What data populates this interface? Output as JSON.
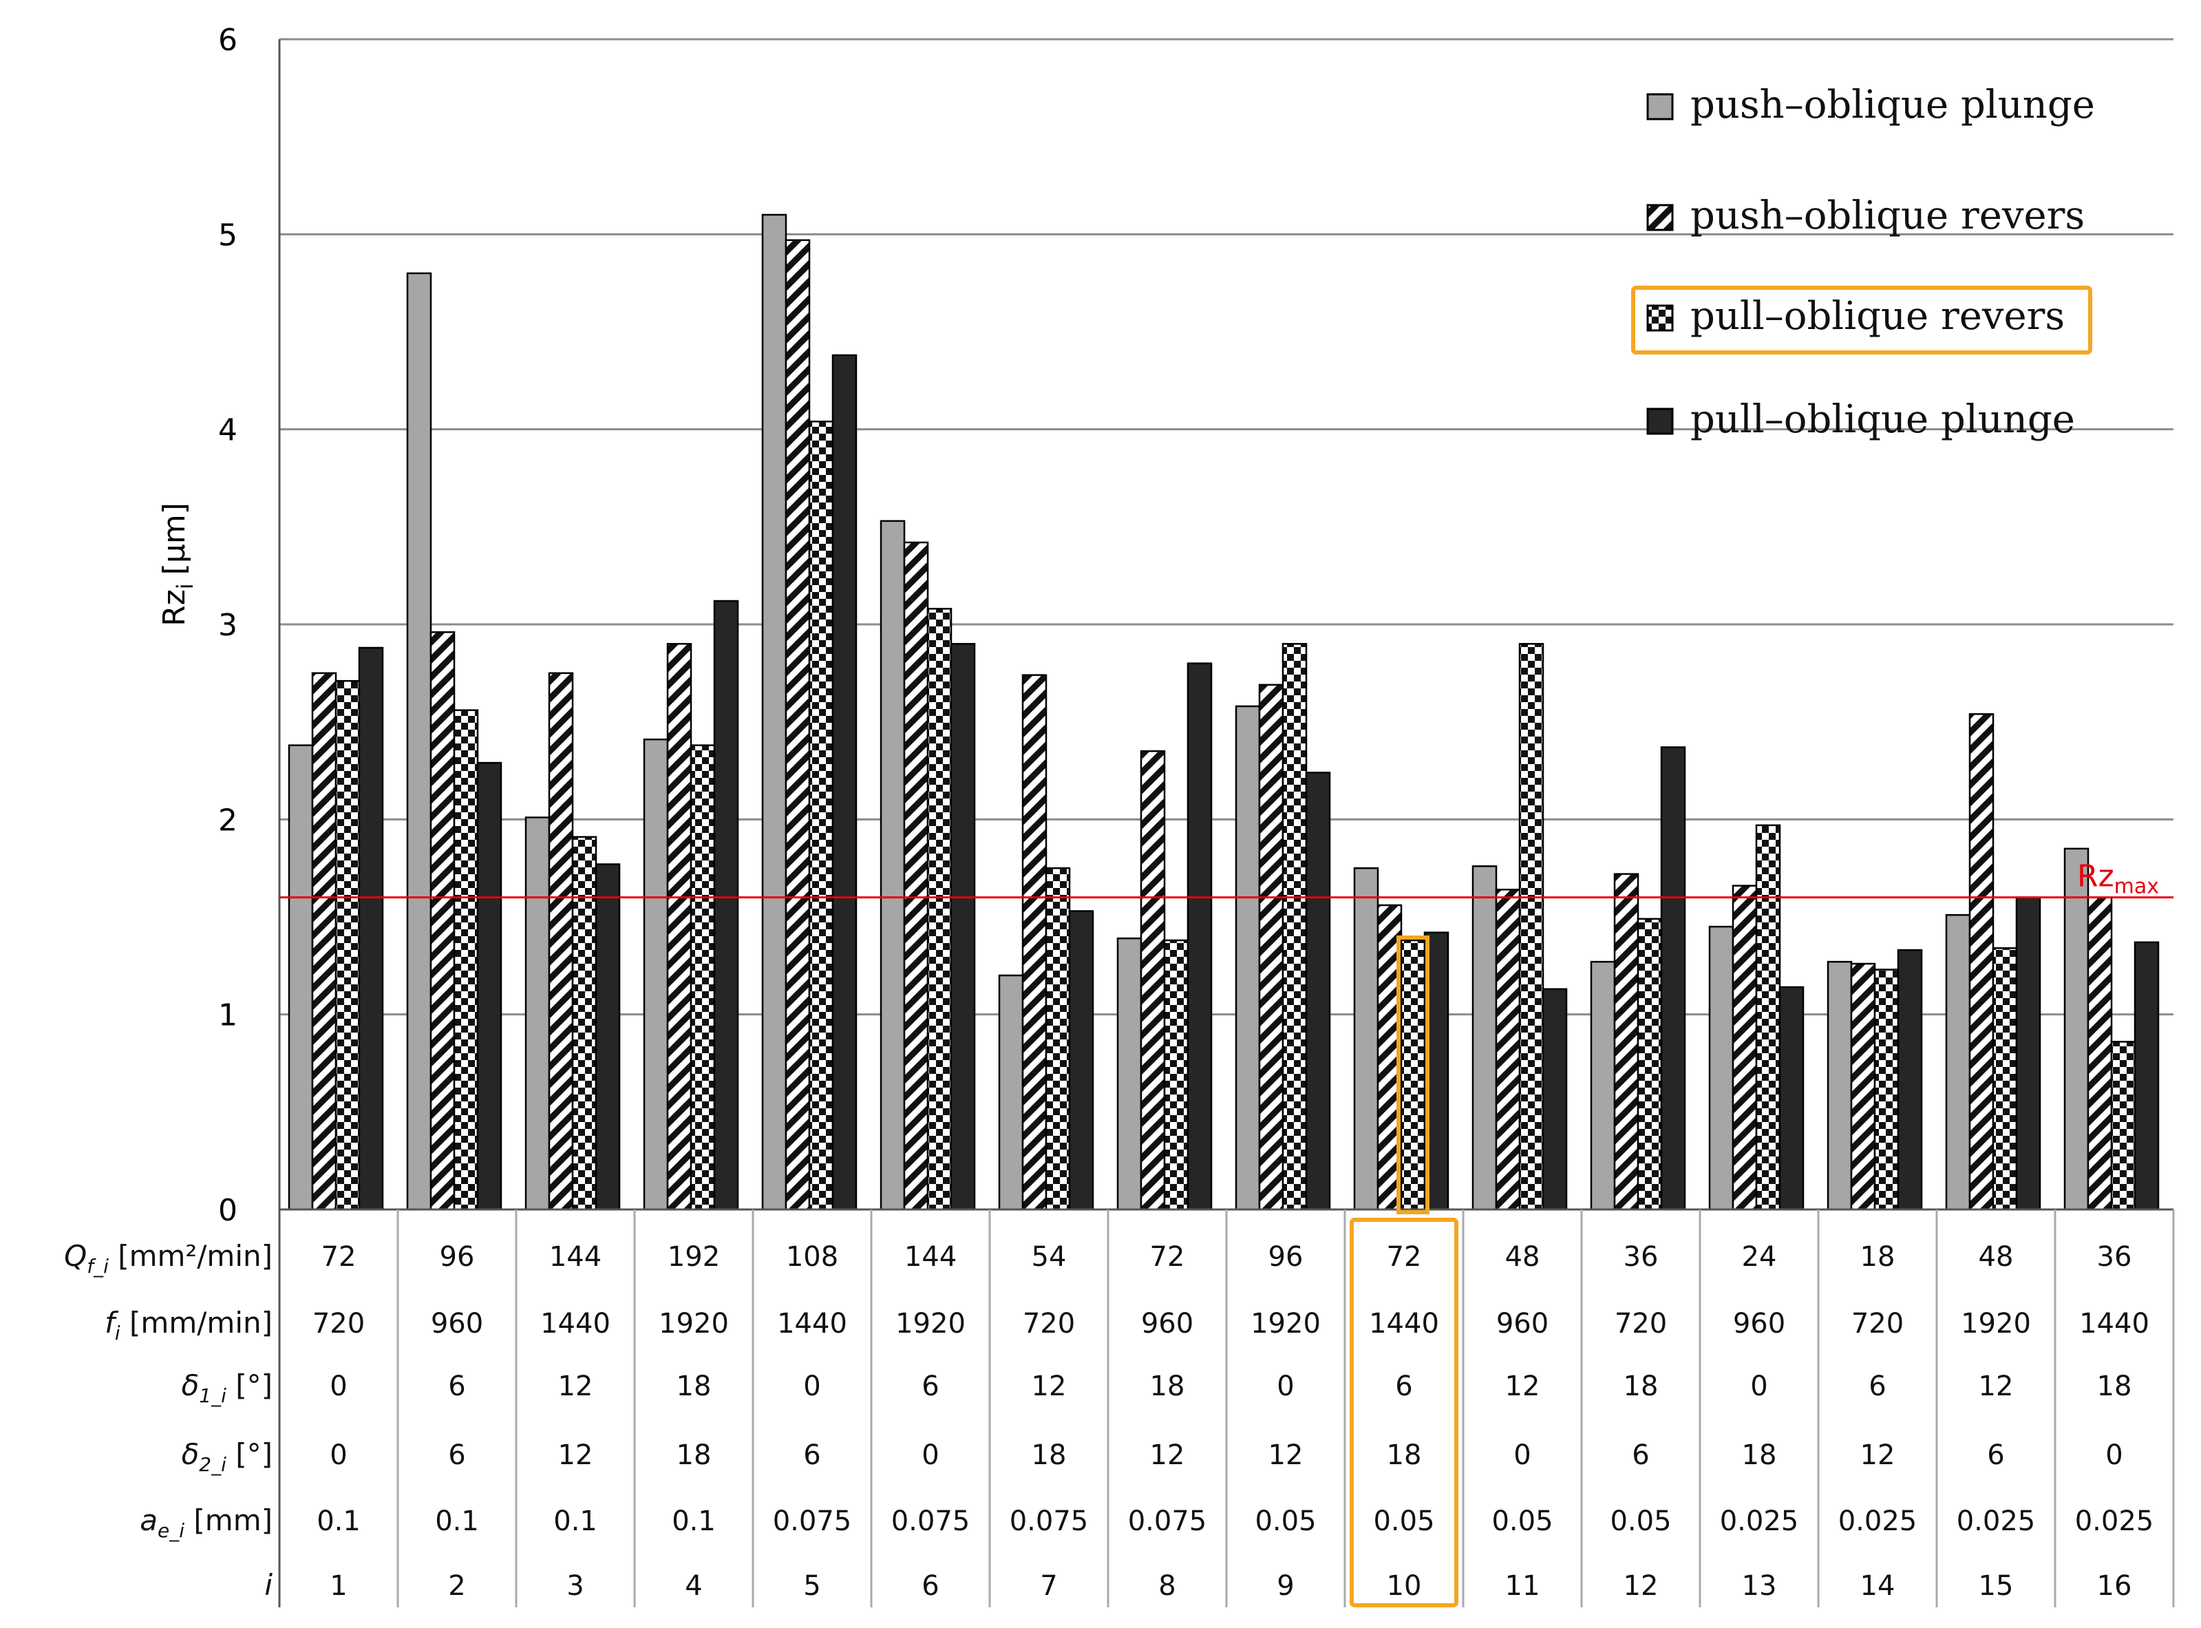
{
  "chart_data": {
    "type": "bar",
    "ylabel": "Rz",
    "ylabel_sub": "i",
    "ylabel_unit": "[µm]",
    "ylim": [
      0,
      6
    ],
    "yticks": [
      0,
      1,
      2,
      3,
      4,
      5,
      6
    ],
    "grid": true,
    "legend_position": "top-right",
    "categories": [
      "1",
      "2",
      "3",
      "4",
      "5",
      "6",
      "7",
      "8",
      "9",
      "10",
      "11",
      "12",
      "13",
      "14",
      "15",
      "16"
    ],
    "series": [
      {
        "name": "push–oblique plunge",
        "pattern": "gray",
        "values": [
          2.38,
          4.8,
          2.01,
          2.41,
          5.1,
          3.53,
          1.2,
          1.39,
          2.58,
          1.75,
          1.76,
          1.27,
          1.45,
          1.27,
          1.51,
          1.85
        ]
      },
      {
        "name": "push–oblique revers",
        "pattern": "diagonal",
        "values": [
          2.75,
          2.96,
          2.75,
          2.9,
          4.97,
          3.42,
          2.74,
          2.35,
          2.69,
          1.56,
          1.64,
          1.72,
          1.66,
          1.26,
          2.54,
          1.6
        ]
      },
      {
        "name": "pull–oblique revers",
        "pattern": "checker",
        "values": [
          2.71,
          2.56,
          1.91,
          2.38,
          4.04,
          3.08,
          1.75,
          1.38,
          2.9,
          1.38,
          2.9,
          1.49,
          1.97,
          1.23,
          1.34,
          0.86
        ]
      },
      {
        "name": "pull–oblique plunge",
        "pattern": "black",
        "values": [
          2.88,
          2.29,
          1.77,
          3.12,
          4.38,
          2.9,
          1.53,
          2.8,
          2.24,
          1.42,
          1.13,
          2.37,
          1.14,
          1.33,
          1.6,
          1.37
        ]
      }
    ],
    "reference_line": {
      "value": 1.6,
      "label": "Rz",
      "label_sub": "max",
      "color": "#e8000b"
    },
    "highlight": {
      "category_index": 9,
      "series_index": 2,
      "color": "#f5a623"
    },
    "table": {
      "rows": [
        {
          "label": "Q",
          "label_sub": "f_i",
          "label_unit": " [mm²/min]",
          "italic": true,
          "values": [
            "72",
            "96",
            "144",
            "192",
            "108",
            "144",
            "54",
            "72",
            "96",
            "72",
            "48",
            "36",
            "24",
            "18",
            "48",
            "36"
          ]
        },
        {
          "label": "f",
          "label_sub": "i",
          "label_unit": " [mm/min]",
          "italic": true,
          "values": [
            "720",
            "960",
            "1440",
            "1920",
            "1440",
            "1920",
            "720",
            "960",
            "1920",
            "1440",
            "960",
            "720",
            "960",
            "720",
            "1920",
            "1440"
          ]
        },
        {
          "label": "δ",
          "label_sub": "1_i",
          "label_unit": " [°]",
          "italic": true,
          "values": [
            "0",
            "6",
            "12",
            "18",
            "0",
            "6",
            "12",
            "18",
            "0",
            "6",
            "12",
            "18",
            "0",
            "6",
            "12",
            "18"
          ]
        },
        {
          "label": "δ",
          "label_sub": "2_i",
          "label_unit": " [°]",
          "italic": true,
          "values": [
            "0",
            "6",
            "12",
            "18",
            "6",
            "0",
            "18",
            "12",
            "12",
            "18",
            "0",
            "6",
            "18",
            "12",
            "6",
            "0"
          ]
        },
        {
          "label": "a",
          "label_sub": "e_i",
          "label_unit": " [mm]",
          "italic": true,
          "values": [
            "0.1",
            "0.1",
            "0.1",
            "0.1",
            "0.075",
            "0.075",
            "0.075",
            "0.075",
            "0.05",
            "0.05",
            "0.05",
            "0.05",
            "0.025",
            "0.025",
            "0.025",
            "0.025"
          ]
        },
        {
          "label": "i",
          "label_sub": "",
          "label_unit": "",
          "italic": true,
          "values": [
            "1",
            "2",
            "3",
            "4",
            "5",
            "6",
            "7",
            "8",
            "9",
            "10",
            "11",
            "12",
            "13",
            "14",
            "15",
            "16"
          ]
        }
      ]
    }
  },
  "colors": {
    "gray_bar": "#a6a6a6",
    "black_bar": "#262626",
    "grid": "#8c8c8c",
    "highlight": "#f5a623",
    "reference": "#e8000b"
  }
}
